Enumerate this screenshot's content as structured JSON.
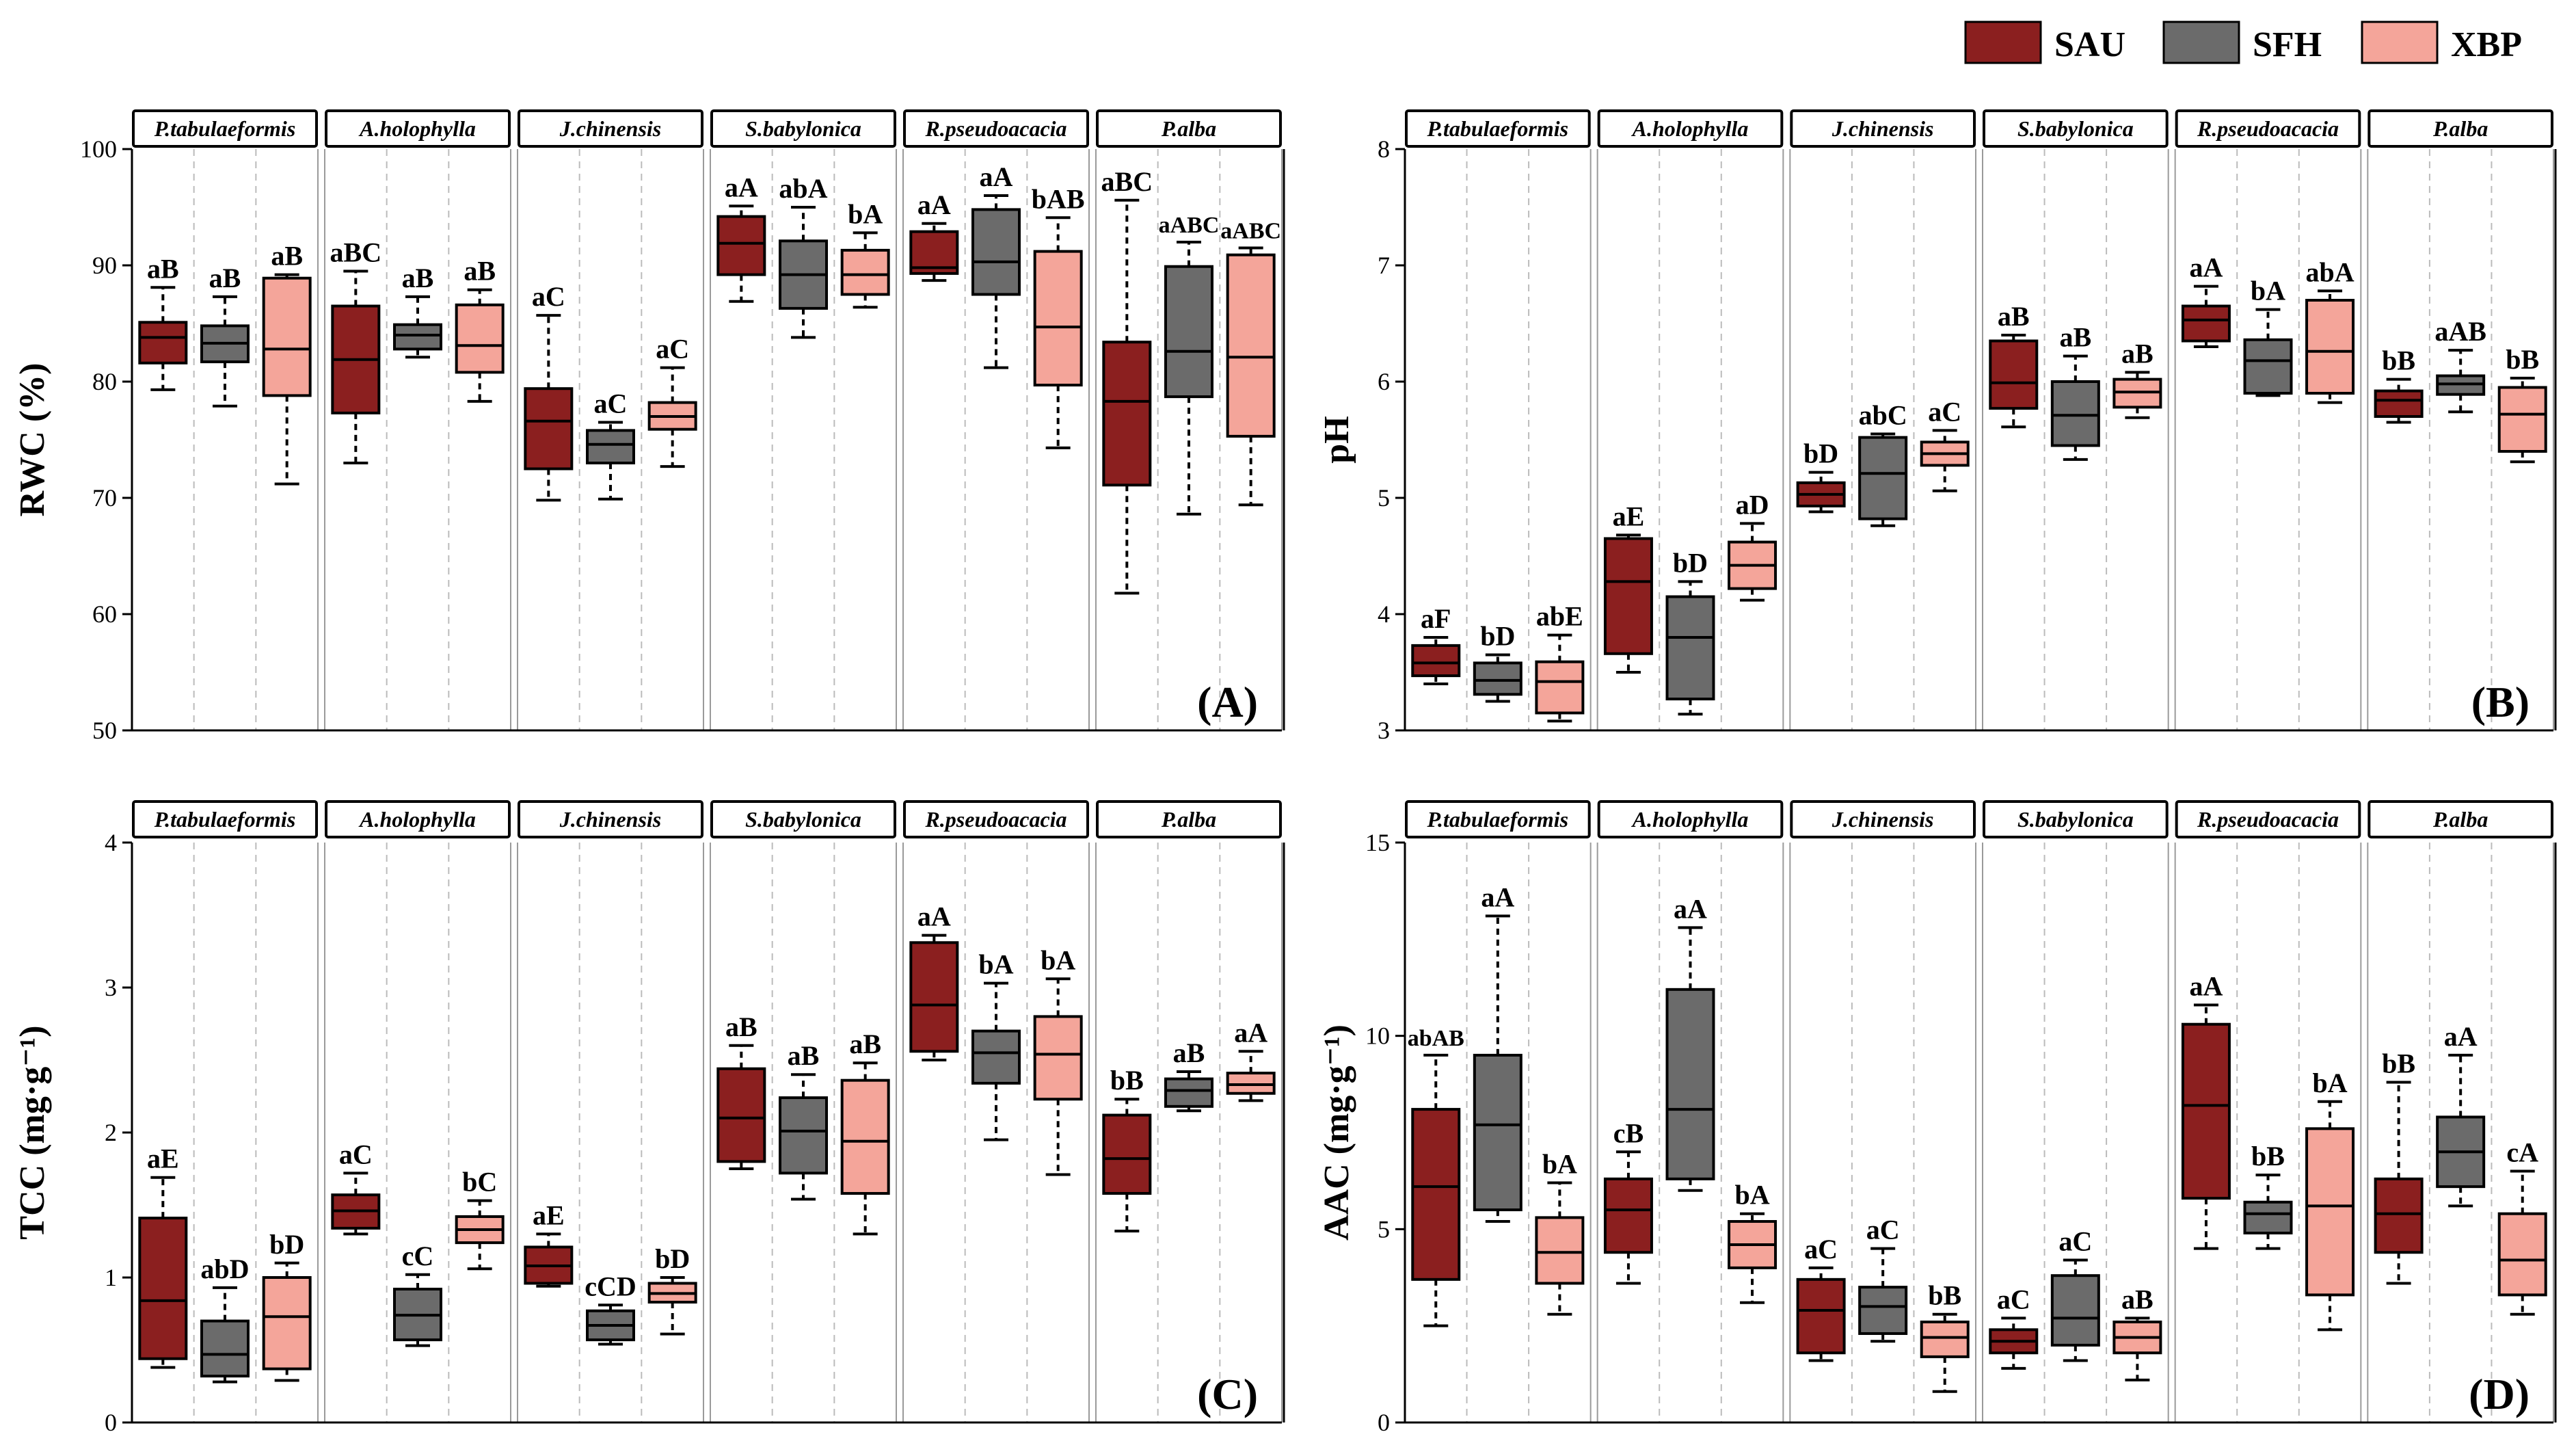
{
  "legend": {
    "items": [
      {
        "name": "SAU",
        "color": "#8b1f1f"
      },
      {
        "name": "SFH",
        "color": "#6b6b6b"
      },
      {
        "name": "XBP",
        "color": "#f4a59a"
      }
    ]
  },
  "colors": {
    "border": "#000000",
    "divider": "#bbbbbb",
    "strip_fill": "#ffffff"
  },
  "chart_data": [
    {
      "type": "box",
      "panel": "(A)",
      "ylabel": "RWC (%)",
      "ylim": [
        50,
        100
      ],
      "yticks": [
        "50",
        "60",
        "70",
        "80",
        "90",
        "100"
      ],
      "species": [
        "P.tabulaeformis",
        "A.holophylla",
        "J.chinensis",
        "S.babylonica",
        "R.pseudoacacia",
        "P.alba"
      ],
      "groups": [
        "SAU",
        "SFH",
        "XBP"
      ],
      "boxes": [
        [
          [
            79.3,
            81.6,
            83.8,
            85.1,
            88.1,
            "aB"
          ],
          [
            77.9,
            81.7,
            83.3,
            84.8,
            87.3,
            "aB"
          ],
          [
            71.2,
            78.8,
            82.8,
            88.9,
            89.2,
            "aB"
          ]
        ],
        [
          [
            73.0,
            77.3,
            81.9,
            86.5,
            89.5,
            "aBC"
          ],
          [
            82.1,
            82.8,
            84.0,
            84.9,
            87.3,
            "aB"
          ],
          [
            78.3,
            80.8,
            83.1,
            86.6,
            87.9,
            "aB"
          ]
        ],
        [
          [
            69.8,
            72.5,
            76.6,
            79.4,
            85.7,
            "aC"
          ],
          [
            69.9,
            73.0,
            74.6,
            75.8,
            76.5,
            "aC"
          ],
          [
            72.7,
            75.9,
            77.0,
            78.2,
            81.2,
            "aC"
          ]
        ],
        [
          [
            86.9,
            89.2,
            91.9,
            94.2,
            95.1,
            "aA"
          ],
          [
            83.8,
            86.3,
            89.2,
            92.1,
            95.0,
            "abA"
          ],
          [
            86.4,
            87.5,
            89.2,
            91.3,
            92.8,
            "bA"
          ]
        ],
        [
          [
            88.7,
            89.3,
            89.8,
            92.9,
            93.6,
            "aA"
          ],
          [
            81.2,
            87.5,
            90.3,
            94.8,
            96.0,
            "aA"
          ],
          [
            74.3,
            79.7,
            84.7,
            91.2,
            94.1,
            "bAB"
          ]
        ],
        [
          [
            61.8,
            71.1,
            78.3,
            83.4,
            95.6,
            "aBC"
          ],
          [
            68.6,
            78.7,
            82.6,
            89.9,
            92.0,
            "aABC"
          ],
          [
            69.4,
            75.3,
            82.1,
            90.9,
            91.5,
            "aABC"
          ]
        ]
      ]
    },
    {
      "type": "box",
      "panel": "(B)",
      "ylabel": "pH",
      "ylim": [
        3,
        8
      ],
      "yticks": [
        "3",
        "4",
        "5",
        "6",
        "7",
        "8"
      ],
      "species": [
        "P.tabulaeformis",
        "A.holophylla",
        "J.chinensis",
        "S.babylonica",
        "R.pseudoacacia",
        "P.alba"
      ],
      "groups": [
        "SAU",
        "SFH",
        "XBP"
      ],
      "boxes": [
        [
          [
            3.4,
            3.47,
            3.58,
            3.73,
            3.8,
            "aF"
          ],
          [
            3.25,
            3.31,
            3.43,
            3.58,
            3.65,
            "bD"
          ],
          [
            3.08,
            3.15,
            3.42,
            3.59,
            3.82,
            "abE"
          ]
        ],
        [
          [
            3.5,
            3.66,
            4.28,
            4.65,
            4.68,
            "aE"
          ],
          [
            3.14,
            3.27,
            3.8,
            4.15,
            4.28,
            "bD"
          ],
          [
            4.12,
            4.22,
            4.42,
            4.62,
            4.78,
            "aD"
          ]
        ],
        [
          [
            4.88,
            4.93,
            5.03,
            5.13,
            5.22,
            "bD"
          ],
          [
            4.76,
            4.82,
            5.21,
            5.52,
            5.55,
            "abC"
          ],
          [
            5.06,
            5.28,
            5.38,
            5.48,
            5.58,
            "aC"
          ]
        ],
        [
          [
            5.61,
            5.77,
            5.99,
            6.35,
            6.4,
            "aB"
          ],
          [
            5.33,
            5.45,
            5.71,
            6.0,
            6.22,
            "aB"
          ],
          [
            5.69,
            5.78,
            5.91,
            6.02,
            6.08,
            "aB"
          ]
        ],
        [
          [
            6.3,
            6.35,
            6.53,
            6.65,
            6.82,
            "aA"
          ],
          [
            5.88,
            5.9,
            6.18,
            6.36,
            6.62,
            "bA"
          ],
          [
            5.82,
            5.9,
            6.26,
            6.7,
            6.78,
            "abA"
          ]
        ],
        [
          [
            5.65,
            5.7,
            5.84,
            5.92,
            6.02,
            "bB"
          ],
          [
            5.74,
            5.89,
            5.98,
            6.05,
            6.27,
            "aAB"
          ],
          [
            5.31,
            5.4,
            5.72,
            5.95,
            6.03,
            "bB"
          ]
        ]
      ]
    },
    {
      "type": "box",
      "panel": "(C)",
      "ylabel": "TCC (mg·g⁻¹)",
      "ylim": [
        0,
        4
      ],
      "yticks": [
        "0",
        "1",
        "2",
        "3",
        "4"
      ],
      "species": [
        "P.tabulaeformis",
        "A.holophylla",
        "J.chinensis",
        "S.babylonica",
        "R.pseudoacacia",
        "P.alba"
      ],
      "groups": [
        "SAU",
        "SFH",
        "XBP"
      ],
      "boxes": [
        [
          [
            0.38,
            0.44,
            0.84,
            1.41,
            1.69,
            "aE"
          ],
          [
            0.28,
            0.32,
            0.47,
            0.7,
            0.93,
            "abD"
          ],
          [
            0.29,
            0.37,
            0.73,
            1.0,
            1.1,
            "bD"
          ]
        ],
        [
          [
            1.3,
            1.34,
            1.46,
            1.57,
            1.72,
            "aC"
          ],
          [
            0.53,
            0.57,
            0.74,
            0.92,
            1.02,
            "cC"
          ],
          [
            1.06,
            1.24,
            1.33,
            1.42,
            1.53,
            "bC"
          ]
        ],
        [
          [
            0.94,
            0.96,
            1.08,
            1.21,
            1.3,
            "aE"
          ],
          [
            0.54,
            0.57,
            0.67,
            0.77,
            0.81,
            "cCD"
          ],
          [
            0.61,
            0.83,
            0.89,
            0.96,
            1.0,
            "bD"
          ]
        ],
        [
          [
            1.75,
            1.8,
            2.1,
            2.44,
            2.6,
            "aB"
          ],
          [
            1.54,
            1.72,
            2.01,
            2.24,
            2.4,
            "aB"
          ],
          [
            1.3,
            1.58,
            1.94,
            2.36,
            2.48,
            "aB"
          ]
        ],
        [
          [
            2.5,
            2.56,
            2.88,
            3.31,
            3.36,
            "aA"
          ],
          [
            1.95,
            2.34,
            2.55,
            2.7,
            3.03,
            "bA"
          ],
          [
            1.71,
            2.23,
            2.54,
            2.8,
            3.06,
            "bA"
          ]
        ],
        [
          [
            1.32,
            1.58,
            1.82,
            2.12,
            2.23,
            "bB"
          ],
          [
            2.15,
            2.18,
            2.29,
            2.37,
            2.42,
            "aB"
          ],
          [
            2.22,
            2.27,
            2.33,
            2.41,
            2.56,
            "aA"
          ]
        ]
      ]
    },
    {
      "type": "box",
      "panel": "(D)",
      "ylabel": "AAC (mg·g⁻¹)",
      "ylim": [
        0,
        15
      ],
      "yticks": [
        "0",
        "5",
        "10",
        "15"
      ],
      "species": [
        "P.tabulaeformis",
        "A.holophylla",
        "J.chinensis",
        "S.babylonica",
        "R.pseudoacacia",
        "P.alba"
      ],
      "groups": [
        "SAU",
        "SFH",
        "XBP"
      ],
      "boxes": [
        [
          [
            2.5,
            3.7,
            6.1,
            8.1,
            9.5,
            "abAB"
          ],
          [
            5.2,
            5.5,
            7.7,
            9.5,
            13.1,
            "aA"
          ],
          [
            2.8,
            3.6,
            4.4,
            5.3,
            6.2,
            "bA"
          ]
        ],
        [
          [
            3.6,
            4.4,
            5.5,
            6.3,
            7.0,
            "cB"
          ],
          [
            6.0,
            6.3,
            8.1,
            11.2,
            12.8,
            "aA"
          ],
          [
            3.1,
            4.0,
            4.6,
            5.2,
            5.4,
            "bA"
          ]
        ],
        [
          [
            1.6,
            1.8,
            2.9,
            3.7,
            4.0,
            "aC"
          ],
          [
            2.1,
            2.3,
            3.0,
            3.5,
            4.5,
            "aC"
          ],
          [
            0.8,
            1.7,
            2.2,
            2.6,
            2.8,
            "bB"
          ]
        ],
        [
          [
            1.4,
            1.8,
            2.1,
            2.4,
            2.7,
            "aC"
          ],
          [
            1.6,
            2.0,
            2.7,
            3.8,
            4.2,
            "aC"
          ],
          [
            1.1,
            1.8,
            2.2,
            2.6,
            2.7,
            "aB"
          ]
        ],
        [
          [
            4.5,
            5.8,
            8.2,
            10.3,
            10.8,
            "aA"
          ],
          [
            4.5,
            4.9,
            5.4,
            5.7,
            6.4,
            "bB"
          ],
          [
            2.4,
            3.3,
            5.6,
            7.6,
            8.3,
            "bA"
          ]
        ],
        [
          [
            3.6,
            4.4,
            5.4,
            6.3,
            8.8,
            "bB"
          ],
          [
            5.6,
            6.1,
            7.0,
            7.9,
            9.5,
            "aA"
          ],
          [
            2.8,
            3.3,
            4.2,
            5.4,
            6.5,
            "cA"
          ]
        ]
      ]
    }
  ]
}
